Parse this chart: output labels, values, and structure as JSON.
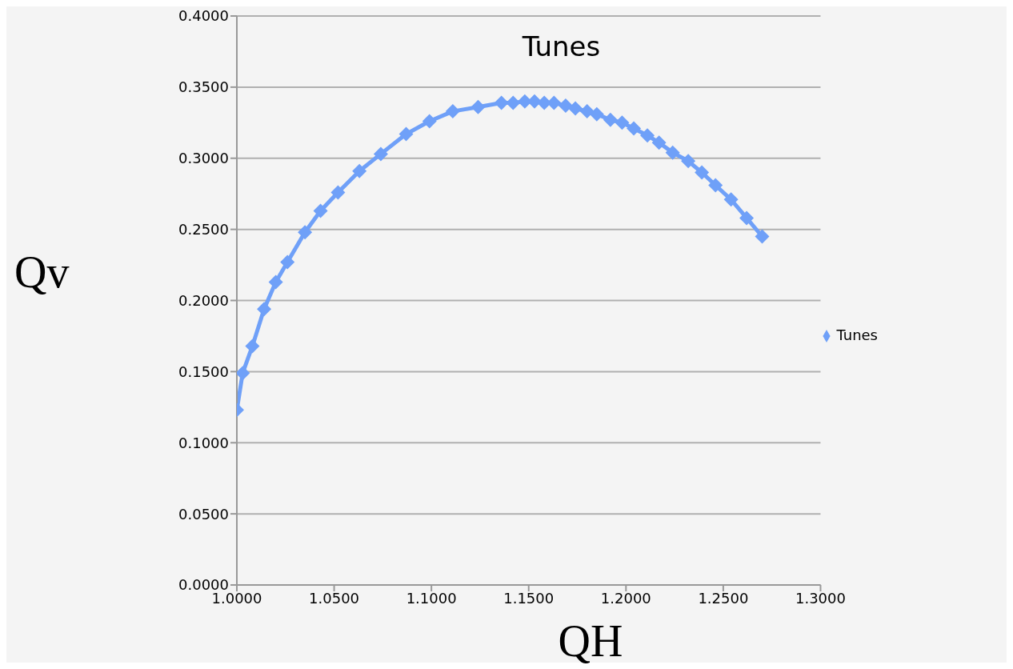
{
  "chart_data": {
    "type": "line",
    "title": "Tunes",
    "xlabel": "QH",
    "ylabel": "Qv",
    "x": [
      1.0,
      1.003,
      1.008,
      1.014,
      1.02,
      1.026,
      1.035,
      1.043,
      1.052,
      1.063,
      1.074,
      1.087,
      1.099,
      1.111,
      1.124,
      1.136,
      1.142,
      1.148,
      1.153,
      1.158,
      1.163,
      1.169,
      1.174,
      1.18,
      1.185,
      1.192,
      1.198,
      1.204,
      1.211,
      1.217,
      1.224,
      1.232,
      1.239,
      1.246,
      1.254,
      1.262,
      1.27
    ],
    "series": [
      {
        "name": "Tunes",
        "color": "#6fa0f8",
        "values": [
          0.123,
          0.149,
          0.168,
          0.194,
          0.213,
          0.227,
          0.248,
          0.263,
          0.276,
          0.291,
          0.303,
          0.317,
          0.326,
          0.333,
          0.336,
          0.339,
          0.339,
          0.34,
          0.34,
          0.339,
          0.339,
          0.337,
          0.335,
          0.333,
          0.331,
          0.327,
          0.325,
          0.321,
          0.316,
          0.311,
          0.304,
          0.298,
          0.29,
          0.281,
          0.271,
          0.258,
          0.245
        ]
      }
    ],
    "xlim": [
      1.0,
      1.3
    ],
    "xticks": [
      {
        "value": 1.0,
        "label": "1.0000"
      },
      {
        "value": 1.05,
        "label": "1.0500"
      },
      {
        "value": 1.1,
        "label": "1.1000"
      },
      {
        "value": 1.15,
        "label": "1.1500"
      },
      {
        "value": 1.2,
        "label": "1.2000"
      },
      {
        "value": 1.25,
        "label": "1.2500"
      },
      {
        "value": 1.3,
        "label": "1.3000"
      }
    ],
    "ylim": [
      0,
      0.4
    ],
    "yticks": [
      {
        "value": 0,
        "label": "0.0000"
      },
      {
        "value": 0.05,
        "label": "0.0500"
      },
      {
        "value": 0.1,
        "label": "0.1000"
      },
      {
        "value": 0.15,
        "label": "0.1500"
      },
      {
        "value": 0.2,
        "label": "0.2000"
      },
      {
        "value": 0.25,
        "label": "0.2500"
      },
      {
        "value": 0.3,
        "label": "0.3000"
      },
      {
        "value": 0.35,
        "label": "0.3500"
      },
      {
        "value": 0.4,
        "label": "0.4000"
      }
    ],
    "grid": "y",
    "legend": "right",
    "marker": "diamond",
    "line_style": "solid"
  }
}
